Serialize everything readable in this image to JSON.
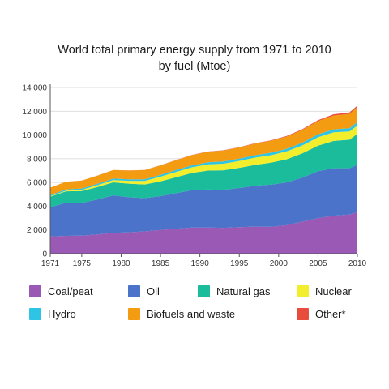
{
  "chart_data": {
    "type": "area",
    "stacked": true,
    "title": "World total primary energy supply from 1971 to 2010",
    "subtitle": "by fuel (Mtoe)",
    "xlim": [
      1971,
      2010
    ],
    "ylim": [
      0,
      14000
    ],
    "grid": true,
    "legend_position": "bottom",
    "x_ticks": [
      "1971",
      "1975",
      "1980",
      "1985",
      "1990",
      "1995",
      "2000",
      "2005",
      "2010"
    ],
    "y_ticks": [
      "0",
      "2 000",
      "4 000",
      "6 000",
      "8 000",
      "10 000",
      "12 000",
      "14 000"
    ],
    "x": [
      1971,
      1973,
      1975,
      1977,
      1979,
      1981,
      1983,
      1985,
      1987,
      1989,
      1991,
      1993,
      1995,
      1997,
      1999,
      2001,
      2003,
      2005,
      2007,
      2009,
      2010
    ],
    "series": [
      {
        "name": "Coal/peat",
        "color": "#9b59b6",
        "values": [
          1450,
          1500,
          1520,
          1620,
          1760,
          1800,
          1880,
          2000,
          2100,
          2200,
          2200,
          2180,
          2230,
          2280,
          2260,
          2400,
          2700,
          3000,
          3200,
          3300,
          3500
        ]
      },
      {
        "name": "Oil",
        "color": "#4a73c9",
        "values": [
          2450,
          2800,
          2750,
          2950,
          3150,
          2950,
          2800,
          2850,
          3000,
          3150,
          3200,
          3200,
          3300,
          3450,
          3550,
          3600,
          3700,
          3950,
          4000,
          3900,
          4000
        ]
      },
      {
        "name": "Natural gas",
        "color": "#1abc9c",
        "values": [
          900,
          950,
          1000,
          1050,
          1100,
          1150,
          1150,
          1250,
          1350,
          1450,
          1600,
          1650,
          1700,
          1750,
          1850,
          1950,
          2050,
          2150,
          2300,
          2400,
          2600
        ]
      },
      {
        "name": "Nuclear",
        "color": "#f3ee2c",
        "values": [
          40,
          60,
          110,
          150,
          190,
          240,
          300,
          390,
          440,
          480,
          520,
          550,
          580,
          610,
          630,
          660,
          670,
          710,
          720,
          700,
          710
        ]
      },
      {
        "name": "Hydro",
        "color": "#2ec4e6",
        "values": [
          100,
          105,
          110,
          115,
          125,
          130,
          140,
          150,
          160,
          165,
          175,
          185,
          195,
          205,
          215,
          220,
          230,
          245,
          255,
          270,
          280
        ]
      },
      {
        "name": "Biofuels and waste",
        "color": "#f39c12",
        "values": [
          620,
          640,
          660,
          690,
          720,
          740,
          770,
          800,
          830,
          860,
          890,
          920,
          940,
          970,
          1000,
          1030,
          1070,
          1120,
          1170,
          1210,
          1250
        ]
      },
      {
        "name": "Other*",
        "color": "#e74c3c",
        "values": [
          5,
          6,
          7,
          8,
          9,
          10,
          11,
          12,
          14,
          18,
          22,
          26,
          30,
          34,
          40,
          50,
          60,
          80,
          100,
          120,
          130
        ]
      }
    ],
    "legend_labels": [
      "Coal/peat",
      "Oil",
      "Natural gas",
      "Nuclear",
      "Hydro",
      "Biofuels and waste",
      "Other*"
    ]
  }
}
